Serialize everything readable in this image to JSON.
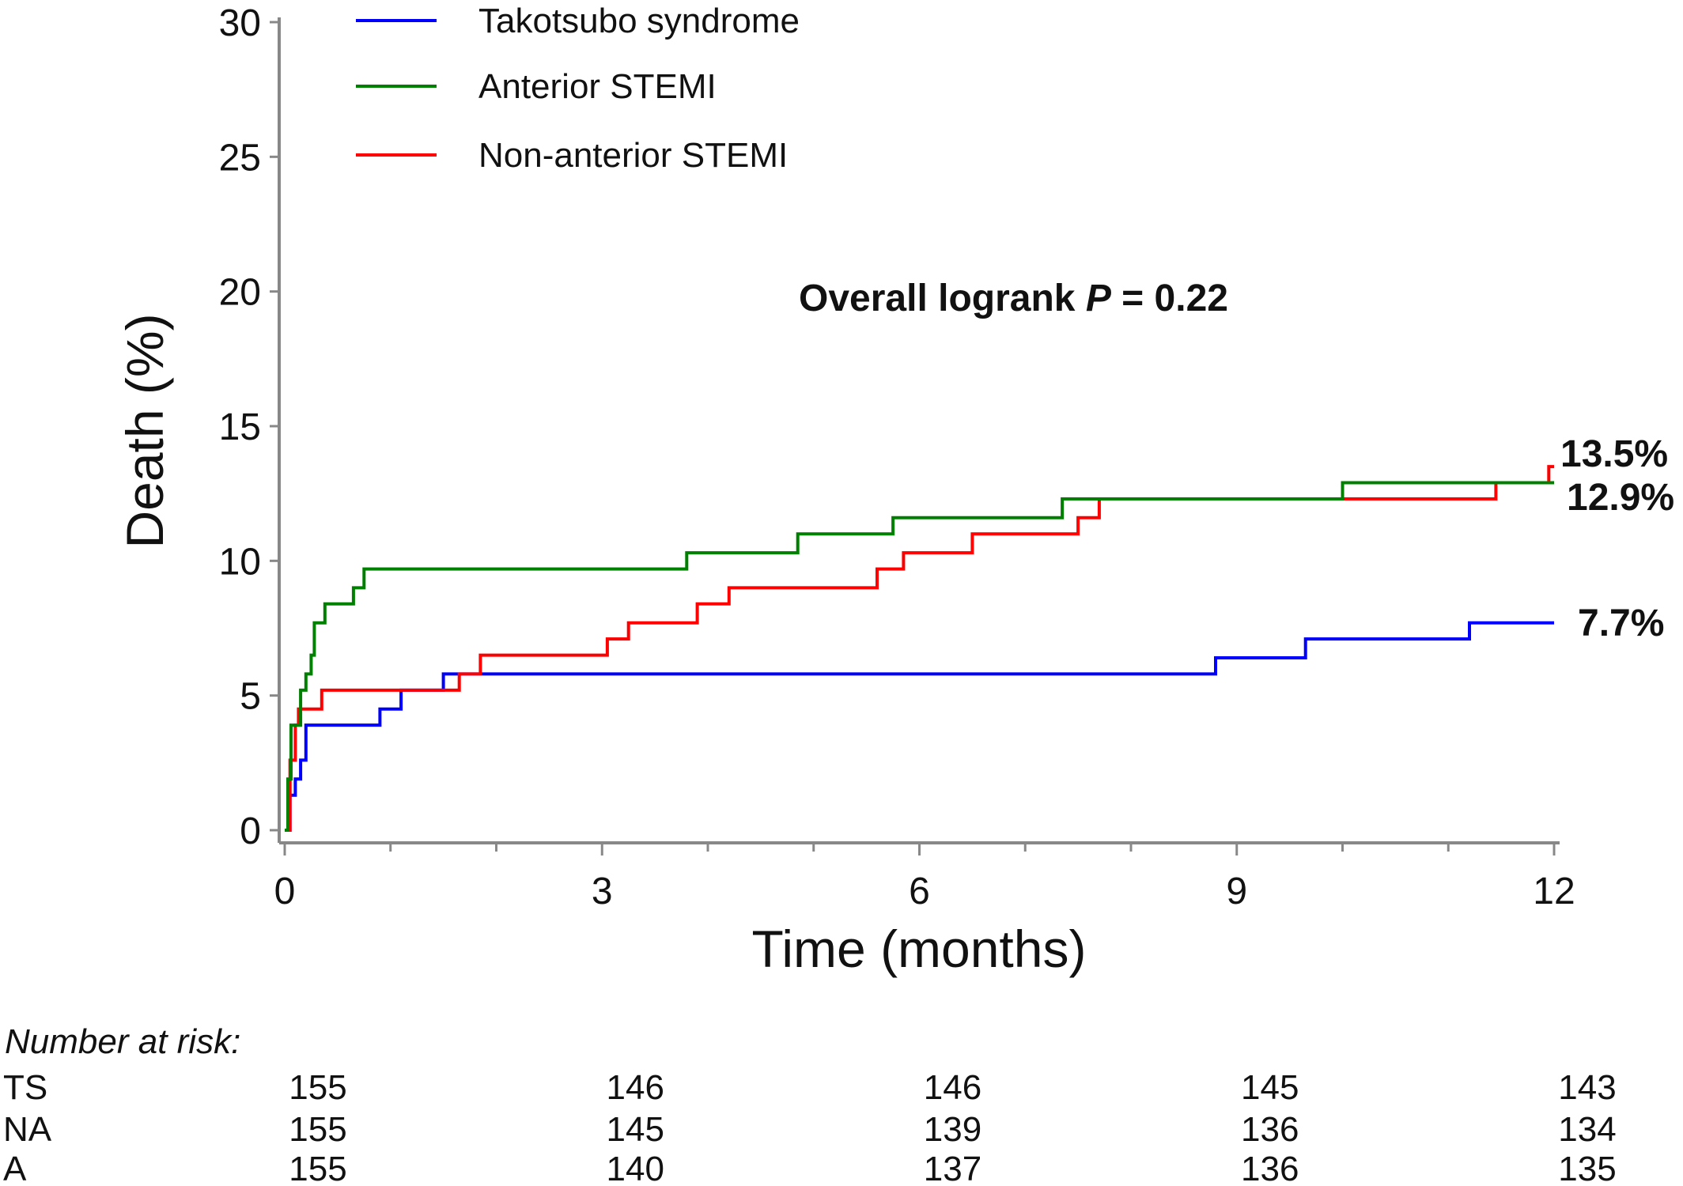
{
  "chart_data": {
    "type": "line",
    "subtype": "kaplan-meier step curve",
    "xlabel": "Time (months)",
    "ylabel": "Death (%)",
    "xlim": [
      0,
      12
    ],
    "ylim": [
      0,
      30
    ],
    "x_ticks": [
      0,
      3,
      6,
      9,
      12
    ],
    "y_ticks": [
      0,
      5,
      10,
      15,
      20,
      25,
      30
    ],
    "grid": false,
    "legend_position": "top-left",
    "annotation": {
      "prefix": "Overall logrank ",
      "stat": "P",
      "suffix": " = 0.22"
    },
    "series": [
      {
        "name": "Takotsubo syndrome",
        "color": "#0000ff",
        "end_label": "7.7%",
        "points": [
          [
            0,
            0
          ],
          [
            0.05,
            1.3
          ],
          [
            0.1,
            1.9
          ],
          [
            0.15,
            2.6
          ],
          [
            0.2,
            3.9
          ],
          [
            0.9,
            4.5
          ],
          [
            1.1,
            5.2
          ],
          [
            1.5,
            5.8
          ],
          [
            8.8,
            6.4
          ],
          [
            9.65,
            7.1
          ],
          [
            11.2,
            7.7
          ],
          [
            12,
            7.7
          ]
        ]
      },
      {
        "name": "Anterior STEMI",
        "color": "#008000",
        "end_label": "12.9%",
        "points": [
          [
            0,
            0
          ],
          [
            0.03,
            1.9
          ],
          [
            0.06,
            3.9
          ],
          [
            0.15,
            5.2
          ],
          [
            0.2,
            5.8
          ],
          [
            0.25,
            6.5
          ],
          [
            0.28,
            7.7
          ],
          [
            0.38,
            8.4
          ],
          [
            0.65,
            9.0
          ],
          [
            0.75,
            9.7
          ],
          [
            3.8,
            10.3
          ],
          [
            4.85,
            11.0
          ],
          [
            5.75,
            11.6
          ],
          [
            7.35,
            12.3
          ],
          [
            10.0,
            12.9
          ],
          [
            12,
            12.9
          ]
        ]
      },
      {
        "name": "Non-anterior STEMI",
        "color": "#ff0000",
        "end_label": "13.5%",
        "points": [
          [
            0,
            0
          ],
          [
            0.05,
            2.6
          ],
          [
            0.1,
            3.9
          ],
          [
            0.13,
            4.5
          ],
          [
            0.35,
            5.2
          ],
          [
            1.65,
            5.8
          ],
          [
            1.85,
            6.5
          ],
          [
            3.05,
            7.1
          ],
          [
            3.25,
            7.7
          ],
          [
            3.9,
            8.4
          ],
          [
            4.2,
            9.0
          ],
          [
            5.6,
            9.7
          ],
          [
            5.85,
            10.3
          ],
          [
            6.5,
            11.0
          ],
          [
            7.5,
            11.6
          ],
          [
            7.7,
            12.3
          ],
          [
            10.0,
            12.3
          ],
          [
            11.45,
            12.9
          ],
          [
            11.95,
            13.5
          ],
          [
            12,
            13.5
          ]
        ]
      }
    ],
    "risk_table": {
      "title": "Number at risk:",
      "timepoints": [
        0,
        3,
        6,
        9,
        12
      ],
      "rows": [
        {
          "label": "TS",
          "values": [
            "155",
            "146",
            "146",
            "145",
            "143"
          ]
        },
        {
          "label": "NA",
          "values": [
            "155",
            "145",
            "139",
            "136",
            "134"
          ]
        },
        {
          "label": "A",
          "values": [
            "155",
            "140",
            "137",
            "136",
            "135"
          ]
        }
      ]
    }
  }
}
